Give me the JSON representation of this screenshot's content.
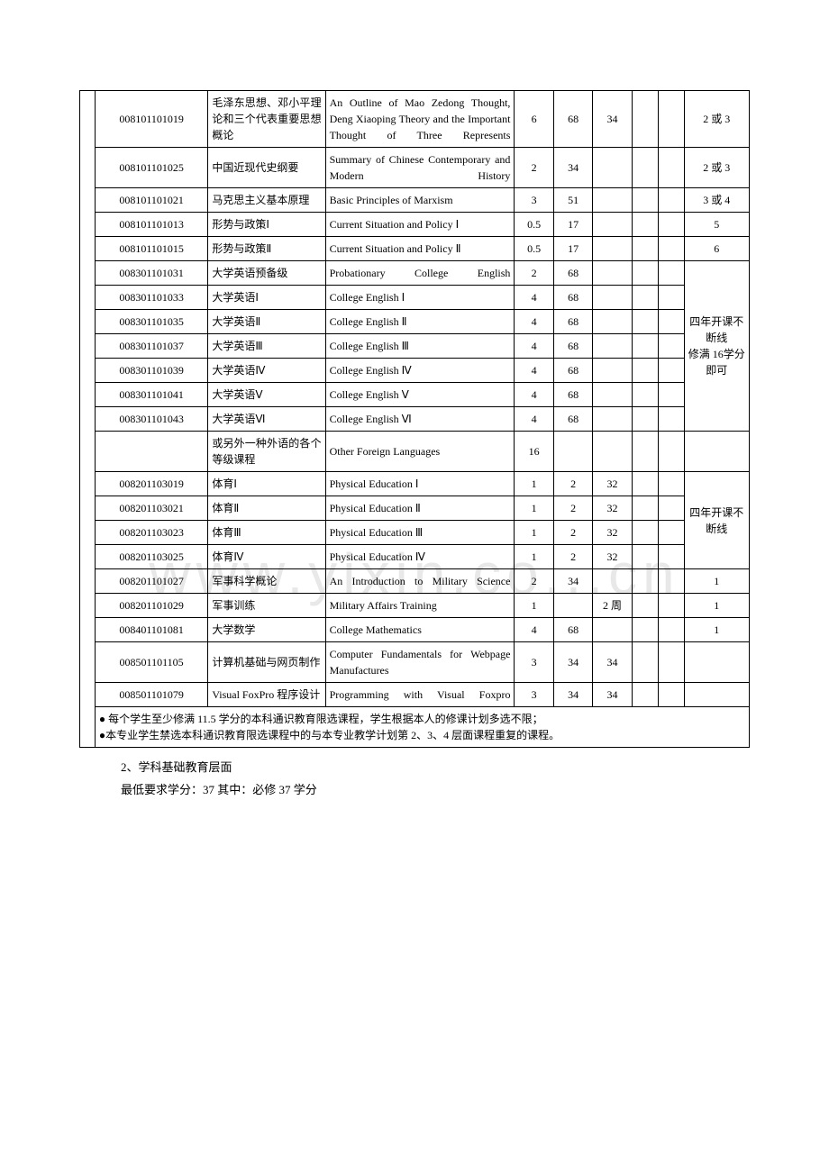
{
  "watermark": "www.yixin.co...cn",
  "rows": [
    {
      "code": "008101101019",
      "cn": "毛泽东思想、邓小平理论和三个代表重要思想概论",
      "en": "An Outline of Mao Zedong Thought, Deng Xiaoping Theory and the Important Thought of Three Represents",
      "cred": "6",
      "h1": "68",
      "h2": "34",
      "h3": "",
      "h4": "",
      "rem": "2 或 3",
      "enJust": true
    },
    {
      "code": "008101101025",
      "cn": "中国近现代史纲要",
      "en": "Summary of Chinese Contemporary and Modern History",
      "cred": "2",
      "h1": "34",
      "h2": "",
      "h3": "",
      "h4": "",
      "rem": "2 或 3",
      "enJust": true
    },
    {
      "code": "008101101021",
      "cn": "马克思主义基本原理",
      "en": "Basic Principles of Marxism",
      "cred": "3",
      "h1": "51",
      "h2": "",
      "h3": "",
      "h4": "",
      "rem": "3 或 4"
    },
    {
      "code": "008101101013",
      "cn": "形势与政策Ⅰ",
      "en": "Current Situation and Policy Ⅰ",
      "cred": "0.5",
      "h1": "17",
      "h2": "",
      "h3": "",
      "h4": "",
      "rem": "5",
      "enCenter": true
    },
    {
      "code": "008101101015",
      "cn": "形势与政策Ⅱ",
      "en": "Current Situation and Policy Ⅱ",
      "cred": "0.5",
      "h1": "17",
      "h2": "",
      "h3": "",
      "h4": "",
      "rem": "6",
      "enCenter": true
    },
    {
      "code": "008301101031",
      "cn": "大学英语预备级",
      "en": "Probationary College English",
      "cred": "2",
      "h1": "68",
      "h2": "",
      "h3": "",
      "h4": "",
      "enJust": true,
      "groupStart": 7,
      "groupText": "四年开课不断线\n修满 16学分即可"
    },
    {
      "code": "008301101033",
      "cn": "大学英语Ⅰ",
      "en": "College English Ⅰ",
      "cred": "4",
      "h1": "68",
      "h2": "",
      "h3": "",
      "h4": ""
    },
    {
      "code": "008301101035",
      "cn": "大学英语Ⅱ",
      "en": "College English Ⅱ",
      "cred": "4",
      "h1": "68",
      "h2": "",
      "h3": "",
      "h4": ""
    },
    {
      "code": "008301101037",
      "cn": "大学英语Ⅲ",
      "en": "College English Ⅲ",
      "cred": "4",
      "h1": "68",
      "h2": "",
      "h3": "",
      "h4": ""
    },
    {
      "code": "008301101039",
      "cn": "大学英语Ⅳ",
      "en": "College English Ⅳ",
      "cred": "4",
      "h1": "68",
      "h2": "",
      "h3": "",
      "h4": ""
    },
    {
      "code": "008301101041",
      "cn": "大学英语Ⅴ",
      "en": "College English Ⅴ",
      "cred": "4",
      "h1": "68",
      "h2": "",
      "h3": "",
      "h4": ""
    },
    {
      "code": "008301101043",
      "cn": "大学英语Ⅵ",
      "en": "College English Ⅵ",
      "cred": "4",
      "h1": "68",
      "h2": "",
      "h3": "",
      "h4": ""
    },
    {
      "code": "",
      "cn": "或另外一种外语的各个等级课程",
      "en": "Other Foreign Languages",
      "cred": "16",
      "h1": "",
      "h2": "",
      "h3": "",
      "h4": "",
      "rem": ""
    },
    {
      "code": "008201103019",
      "cn": "体育Ⅰ",
      "en": "Physical Education Ⅰ",
      "cred": "1",
      "h1": "2",
      "h2": "32",
      "h3": "",
      "h4": "",
      "groupStart": 4,
      "groupText": "四年开课不断线"
    },
    {
      "code": "008201103021",
      "cn": "体育Ⅱ",
      "en": "Physical Education Ⅱ",
      "cred": "1",
      "h1": "2",
      "h2": "32",
      "h3": "",
      "h4": ""
    },
    {
      "code": "008201103023",
      "cn": "体育Ⅲ",
      "en": "Physical Education Ⅲ",
      "cred": "1",
      "h1": "2",
      "h2": "32",
      "h3": "",
      "h4": ""
    },
    {
      "code": "008201103025",
      "cn": "体育Ⅳ",
      "en": "Physical Education Ⅳ",
      "cred": "1",
      "h1": "2",
      "h2": "32",
      "h3": "",
      "h4": ""
    },
    {
      "code": "008201101027",
      "cn": "军事科学概论",
      "en": "An Introduction to Military Science",
      "cred": "2",
      "h1": "34",
      "h2": "",
      "h3": "",
      "h4": "",
      "rem": "1",
      "enJust": true
    },
    {
      "code": "008201101029",
      "cn": "军事训练",
      "en": "Military Affairs Training",
      "cred": "1",
      "h1": "",
      "h2": "2 周",
      "h3": "",
      "h4": "",
      "rem": "1",
      "h2valign": "bottom"
    },
    {
      "code": "008401101081",
      "cn": "大学数学",
      "en": "College Mathematics",
      "cred": "4",
      "h1": "68",
      "h2": "",
      "h3": "",
      "h4": "",
      "rem": "1"
    },
    {
      "code": "008501101105",
      "cn": "计算机基础与网页制作",
      "en": "Computer Fundamentals for Webpage Manufactures",
      "cred": "3",
      "h1": "34",
      "h2": "34",
      "h3": "",
      "h4": "",
      "rem": "",
      "enJust": true
    },
    {
      "code": "008501101079",
      "cn": "Visual FoxPro 程序设计",
      "en": "Programming with Visual Foxpro",
      "cred": "3",
      "h1": "34",
      "h2": "34",
      "h3": "",
      "h4": "",
      "rem": "",
      "enJust": true
    }
  ],
  "notes": [
    "● 每个学生至少修满 11.5 学分的本科通识教育限选课程，学生根据本人的修课计划多选不限；",
    "●本专业学生禁选本科通识教育限选课程中的与本专业教学计划第 2、3、4 层面课程重复的课程。"
  ],
  "after": [
    "2、学科基础教育层面",
    "最低要求学分：37    其中：必修  37 学分"
  ]
}
